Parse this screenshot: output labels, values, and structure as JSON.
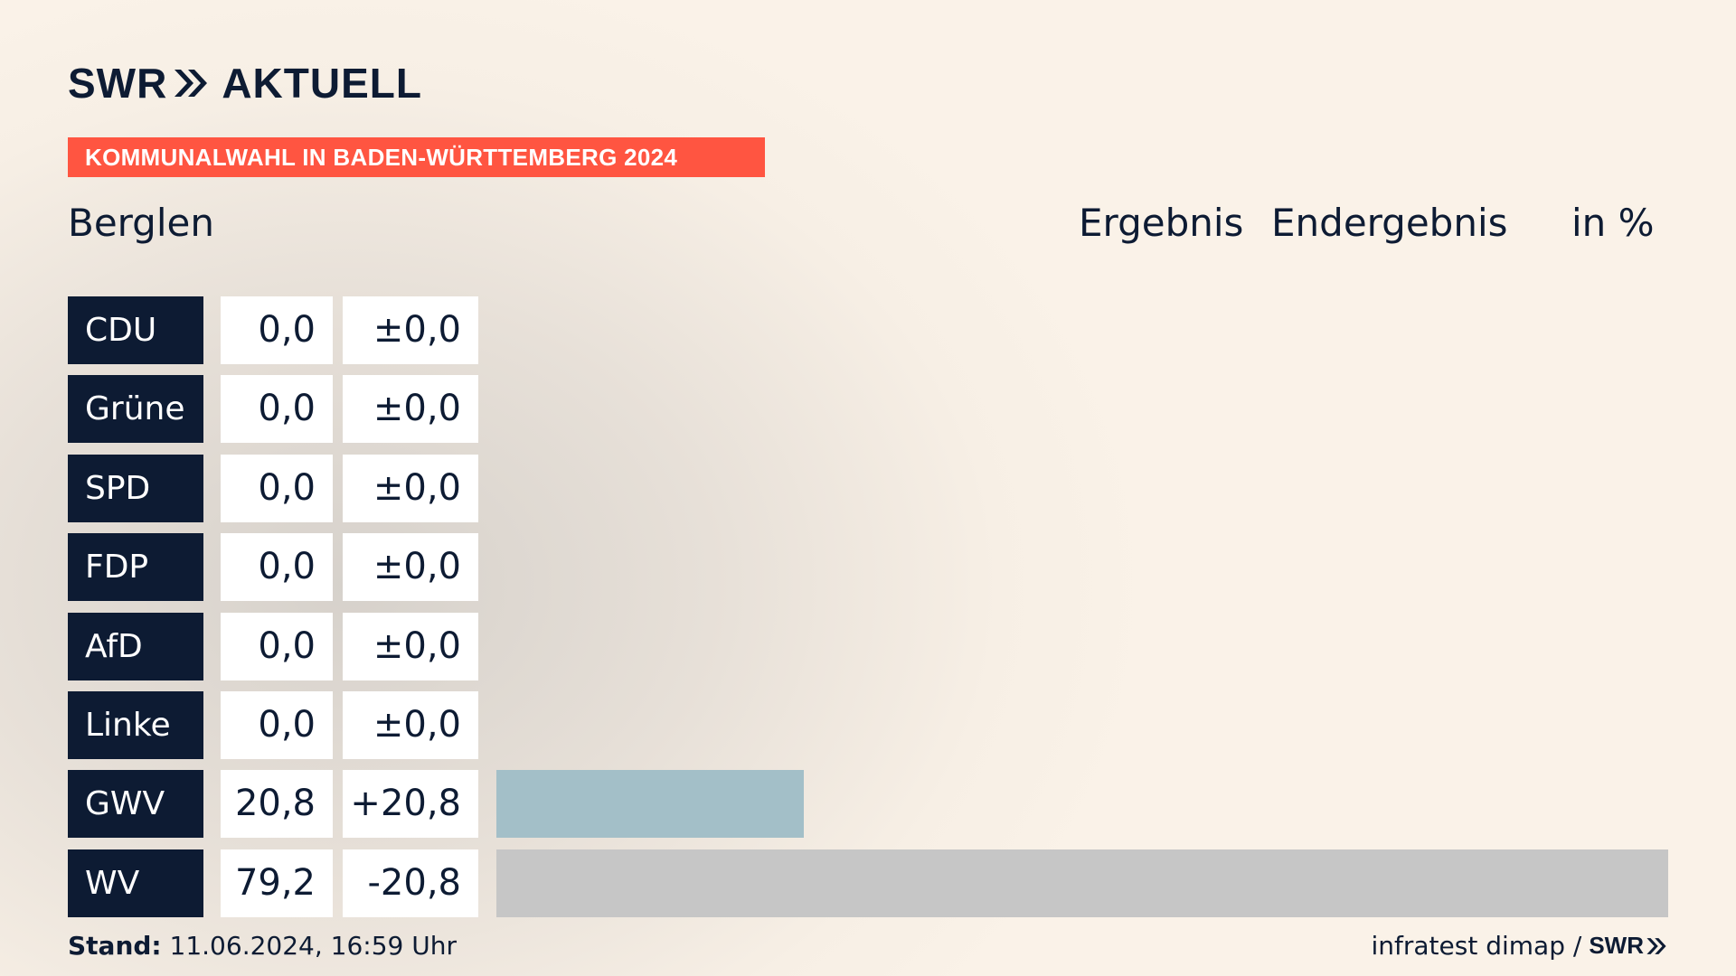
{
  "brand": {
    "logo_text_left": "SWR",
    "logo_text_right": "AKTUELL",
    "colors": {
      "navy": "#0d1b33",
      "accent": "#ff5541",
      "bar_gwv": "#a3bfc8",
      "bar_wv": "#c6c6c6"
    }
  },
  "banner": "KOMMUNALWAHL IN BADEN-WÜRTTEMBERG 2024",
  "place": "Berglen",
  "headers": {
    "ergebnis": "Ergebnis",
    "endergebnis": "Endergebnis",
    "unit": "in %"
  },
  "chart_data": {
    "type": "bar",
    "categories": [
      "CDU",
      "Grüne",
      "SPD",
      "FDP",
      "AfD",
      "Linke",
      "GWV",
      "WV"
    ],
    "values": [
      0.0,
      0.0,
      0.0,
      0.0,
      0.0,
      0.0,
      20.8,
      79.2
    ],
    "value_labels": [
      "0,0",
      "0,0",
      "0,0",
      "0,0",
      "0,0",
      "0,0",
      "20,8",
      "79,2"
    ],
    "diff_labels": [
      "±0,0",
      "±0,0",
      "±0,0",
      "±0,0",
      "±0,0",
      "±0,0",
      "+20,8",
      "-20,8"
    ],
    "bar_colors": [
      "#a3bfc8",
      "#a3bfc8",
      "#a3bfc8",
      "#a3bfc8",
      "#a3bfc8",
      "#a3bfc8",
      "#a3bfc8",
      "#c6c6c6"
    ],
    "xlim": [
      0,
      79.2
    ],
    "orientation": "horizontal"
  },
  "footer": {
    "stand_label": "Stand:",
    "stand_value": "11.06.2024, 16:59 Uhr",
    "source": "infratest dimap /",
    "source_logo": "SWR"
  }
}
